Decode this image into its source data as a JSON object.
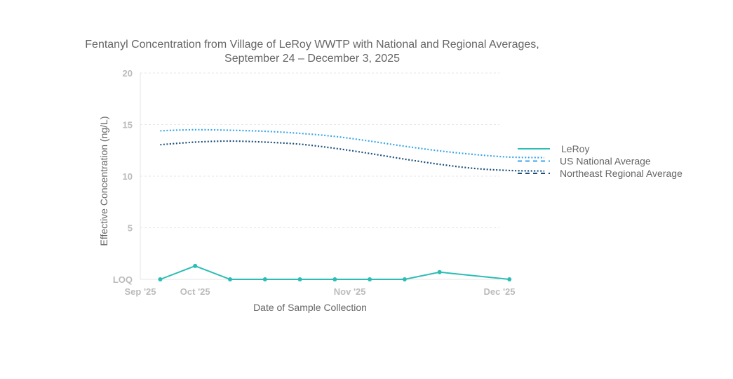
{
  "chart_data": {
    "type": "line",
    "title_line1": "Fentanyl Concentration from Village of LeRoy WWTP with National and Regional Averages,",
    "title_line2": "September 24 – December 3, 2025",
    "xlabel": "Date of Sample Collection",
    "ylabel": "Effective Concentration (ng/L)",
    "x_domain": [
      "2025-09-20",
      "2025-12-01"
    ],
    "x_ticks": [
      {
        "date": "2025-09-20",
        "label": "Sep '25"
      },
      {
        "date": "2025-10-01",
        "label": "Oct '25"
      },
      {
        "date": "2025-11-01",
        "label": "Nov '25"
      },
      {
        "date": "2025-12-01",
        "label": "Dec '25"
      }
    ],
    "ylim": [
      0,
      20
    ],
    "y_ticks": [
      {
        "value": 0,
        "label": "LOQ"
      },
      {
        "value": 5,
        "label": "5"
      },
      {
        "value": 10,
        "label": "10"
      },
      {
        "value": 15,
        "label": "15"
      },
      {
        "value": 20,
        "label": "20"
      }
    ],
    "grid": true,
    "legend_position": "right",
    "series": [
      {
        "name": "LeRoy",
        "color": "#2bbdb5",
        "style": "solid",
        "markers": true,
        "points": [
          {
            "date": "2025-09-24",
            "value": 0
          },
          {
            "date": "2025-10-01",
            "value": 1.3
          },
          {
            "date": "2025-10-08",
            "value": 0
          },
          {
            "date": "2025-10-15",
            "value": 0
          },
          {
            "date": "2025-10-22",
            "value": 0
          },
          {
            "date": "2025-10-29",
            "value": 0
          },
          {
            "date": "2025-11-05",
            "value": 0
          },
          {
            "date": "2025-11-12",
            "value": 0
          },
          {
            "date": "2025-11-19",
            "value": 0.7
          },
          {
            "date": "2025-12-03",
            "value": 0
          }
        ]
      },
      {
        "name": "US National Average",
        "color": "#3aa6e8",
        "style": "dotted",
        "markers": false,
        "points": [
          {
            "date": "2025-09-24",
            "value": 14.4
          },
          {
            "date": "2025-10-01",
            "value": 14.5
          },
          {
            "date": "2025-10-08",
            "value": 14.45
          },
          {
            "date": "2025-10-15",
            "value": 14.35
          },
          {
            "date": "2025-10-22",
            "value": 14.15
          },
          {
            "date": "2025-10-29",
            "value": 13.85
          },
          {
            "date": "2025-11-05",
            "value": 13.4
          },
          {
            "date": "2025-11-12",
            "value": 12.9
          },
          {
            "date": "2025-11-19",
            "value": 12.45
          },
          {
            "date": "2025-11-26",
            "value": 12.1
          },
          {
            "date": "2025-12-03",
            "value": 11.85
          },
          {
            "date": "2025-12-10",
            "value": 11.8
          }
        ]
      },
      {
        "name": "Northeast Regional Average",
        "color": "#1b4f7a",
        "style": "dotted",
        "markers": false,
        "points": [
          {
            "date": "2025-09-24",
            "value": 13.05
          },
          {
            "date": "2025-10-01",
            "value": 13.3
          },
          {
            "date": "2025-10-08",
            "value": 13.4
          },
          {
            "date": "2025-10-15",
            "value": 13.3
          },
          {
            "date": "2025-10-22",
            "value": 13.1
          },
          {
            "date": "2025-10-29",
            "value": 12.7
          },
          {
            "date": "2025-11-05",
            "value": 12.2
          },
          {
            "date": "2025-11-12",
            "value": 11.65
          },
          {
            "date": "2025-11-19",
            "value": 11.15
          },
          {
            "date": "2025-11-26",
            "value": 10.75
          },
          {
            "date": "2025-12-03",
            "value": 10.55
          },
          {
            "date": "2025-12-10",
            "value": 10.5
          }
        ]
      }
    ]
  }
}
